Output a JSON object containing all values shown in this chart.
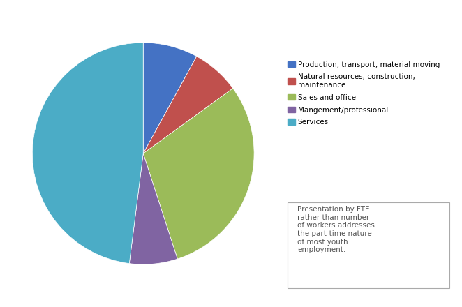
{
  "legend_labels": [
    "Production, transport, material moving",
    "Natural resources, construction,\nmaintenance",
    "Sales and office",
    "Mangement/professional",
    "Services"
  ],
  "values": [
    8,
    7,
    30,
    7,
    48
  ],
  "colors": [
    "#4472C4",
    "#C0504D",
    "#9BBB59",
    "#8064A2",
    "#4BACC6"
  ],
  "startangle": 90,
  "annotation_text": "Presentation by FTE\nrather than number\nof workers addresses\nthe part-time nature\nof most youth\nemployment.",
  "background_color": "#FFFFFF"
}
